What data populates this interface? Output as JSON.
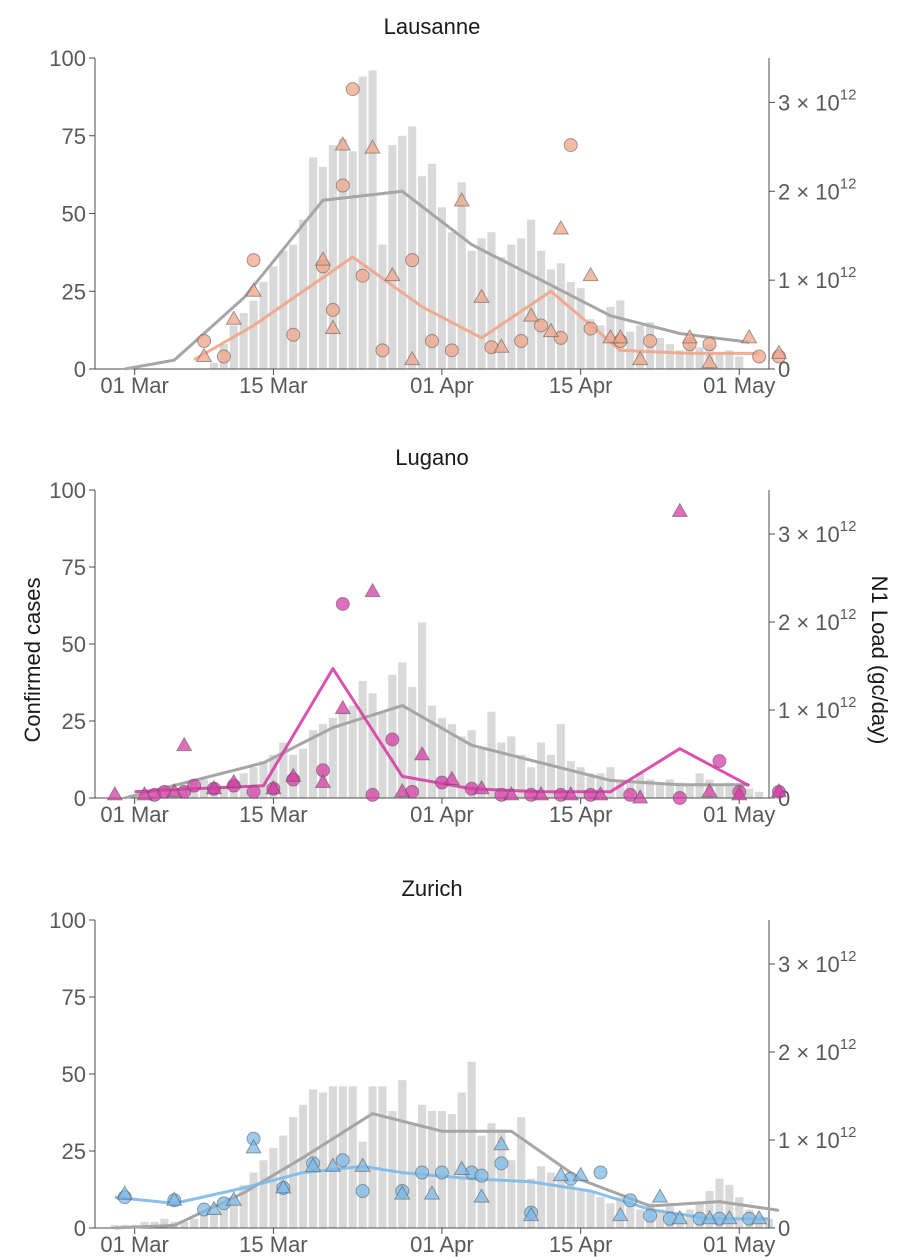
{
  "chart_data": [
    {
      "type": "bar",
      "title": "Lausanne",
      "ylabel": "Confirmed cases",
      "y2label": "N1 Load (gc/day)",
      "ylim": [
        0,
        100
      ],
      "y2lim": [
        0,
        3500000000000.0
      ],
      "yticks": [
        "0",
        "25",
        "50",
        "75",
        "100"
      ],
      "y2ticks": [
        {
          "v": 0,
          "label": "0"
        },
        {
          "v": 1000000000000.0,
          "label": "1 × 10",
          "exp": "12"
        },
        {
          "v": 2000000000000.0,
          "label": "2 × 10",
          "exp": "12"
        },
        {
          "v": 3000000000000.0,
          "label": "3 × 10",
          "exp": "12"
        }
      ],
      "xticks": [
        {
          "d": 0,
          "label": "01 Mar"
        },
        {
          "d": 14,
          "label": "15 Mar"
        },
        {
          "d": 31,
          "label": "01 Apr"
        },
        {
          "d": 45,
          "label": "15 Apr"
        },
        {
          "d": 61,
          "label": "01 May"
        }
      ],
      "xrange": [
        "2020-02-26",
        "2020-05-04"
      ],
      "bar_color": "#d9d9d9",
      "accent": "#f0a58a",
      "bars": {
        "start": "2020-03-09",
        "values": [
          2,
          8,
          14,
          18,
          22,
          28,
          33,
          38,
          40,
          48,
          68,
          65,
          72,
          74,
          70,
          94,
          96,
          40,
          72,
          75,
          78,
          62,
          66,
          52,
          44,
          60,
          38,
          42,
          44,
          36,
          40,
          42,
          48,
          38,
          32,
          34,
          28,
          26,
          16,
          14,
          20,
          22,
          12,
          14,
          15,
          10,
          8,
          6,
          10,
          7,
          8,
          5,
          6,
          4
        ]
      },
      "gray_line": {
        "x": [
          "2020-02-29",
          "2020-03-05",
          "2020-03-12",
          "2020-03-20",
          "2020-03-28",
          "2020-04-04",
          "2020-04-11",
          "2020-04-18",
          "2020-04-25",
          "2020-05-02"
        ],
        "y": [
          0.0,
          100000000000.0,
          800000000000.0,
          1900000000000.0,
          2000000000000.0,
          1400000000000.0,
          1000000000000.0,
          600000000000.0,
          400000000000.0,
          300000000000.0
        ]
      },
      "color_line": {
        "x": [
          "2020-03-07",
          "2020-03-13",
          "2020-03-23",
          "2020-03-30",
          "2020-04-05",
          "2020-04-12",
          "2020-04-19",
          "2020-04-26",
          "2020-05-03"
        ],
        "y": [
          3,
          14,
          36,
          20,
          10,
          25,
          6,
          5,
          5
        ]
      },
      "circles": {
        "x": [
          "2020-03-08",
          "2020-03-10",
          "2020-03-13",
          "2020-03-17",
          "2020-03-20",
          "2020-03-21",
          "2020-03-22",
          "2020-03-23",
          "2020-03-24",
          "2020-03-26",
          "2020-03-29",
          "2020-03-31",
          "2020-04-02",
          "2020-04-06",
          "2020-04-09",
          "2020-04-11",
          "2020-04-13",
          "2020-04-14",
          "2020-04-16",
          "2020-04-19",
          "2020-04-22",
          "2020-04-26",
          "2020-04-28",
          "2020-05-03",
          "2020-05-05"
        ],
        "y": [
          9,
          4,
          35,
          11,
          33,
          19,
          59,
          90,
          30,
          6,
          35,
          9,
          6,
          7,
          9,
          14,
          10,
          72,
          13,
          9,
          9,
          8,
          8,
          4,
          4
        ]
      },
      "triangles": {
        "x": [
          "2020-03-08",
          "2020-03-11",
          "2020-03-13",
          "2020-03-20",
          "2020-03-21",
          "2020-03-22",
          "2020-03-25",
          "2020-03-27",
          "2020-03-29",
          "2020-04-03",
          "2020-04-05",
          "2020-04-07",
          "2020-04-10",
          "2020-04-12",
          "2020-04-13",
          "2020-04-16",
          "2020-04-18",
          "2020-04-19",
          "2020-04-21",
          "2020-04-26",
          "2020-04-28",
          "2020-05-02",
          "2020-05-05"
        ],
        "y": [
          4,
          16,
          25,
          35,
          13,
          72,
          71,
          30,
          3,
          54,
          23,
          7,
          17,
          12,
          45,
          30,
          10,
          10,
          3,
          10,
          2,
          10,
          5
        ]
      }
    },
    {
      "type": "bar",
      "title": "Lugano",
      "ylabel": "Confirmed cases",
      "y2label": "N1 Load (gc/day)",
      "ylim": [
        0,
        100
      ],
      "y2lim": [
        0,
        3500000000000.0
      ],
      "yticks": [
        "0",
        "25",
        "50",
        "75",
        "100"
      ],
      "y2ticks": [
        {
          "v": 0,
          "label": "0"
        },
        {
          "v": 1000000000000.0,
          "label": "1 × 10",
          "exp": "12"
        },
        {
          "v": 2000000000000.0,
          "label": "2 × 10",
          "exp": "12"
        },
        {
          "v": 3000000000000.0,
          "label": "3 × 10",
          "exp": "12"
        }
      ],
      "xticks": [
        {
          "d": 0,
          "label": "01 Mar"
        },
        {
          "d": 14,
          "label": "15 Mar"
        },
        {
          "d": 31,
          "label": "01 Apr"
        },
        {
          "d": 45,
          "label": "15 Apr"
        },
        {
          "d": 61,
          "label": "01 May"
        }
      ],
      "xrange": [
        "2020-02-26",
        "2020-05-04"
      ],
      "bar_color": "#d9d9d9",
      "accent": "#d63ea6",
      "bars": {
        "start": "2020-03-01",
        "values": [
          1,
          1,
          2,
          2,
          3,
          4,
          5,
          6,
          5,
          4,
          6,
          8,
          10,
          12,
          14,
          18,
          14,
          16,
          22,
          24,
          26,
          28,
          30,
          38,
          34,
          28,
          40,
          44,
          36,
          57,
          30,
          26,
          24,
          20,
          22,
          16,
          28,
          18,
          20,
          14,
          10,
          18,
          14,
          24,
          12,
          10,
          8,
          8,
          10,
          6,
          5,
          8,
          6,
          5,
          6,
          5,
          4,
          8,
          6,
          4,
          5,
          4,
          3,
          2
        ]
      },
      "gray_line": {
        "x": [
          "2020-02-29",
          "2020-03-07",
          "2020-03-14",
          "2020-03-21",
          "2020-03-28",
          "2020-04-04",
          "2020-04-11",
          "2020-04-18",
          "2020-04-25",
          "2020-05-02"
        ],
        "y": [
          0.0,
          200000000000.0,
          400000000000.0,
          800000000000.0,
          1050000000000.0,
          600000000000.0,
          400000000000.0,
          200000000000.0,
          150000000000.0,
          150000000000.0
        ]
      },
      "color_line": {
        "x": [
          "2020-03-01",
          "2020-03-07",
          "2020-03-14",
          "2020-03-21",
          "2020-03-28",
          "2020-04-04",
          "2020-04-11",
          "2020-04-18",
          "2020-04-25",
          "2020-05-02"
        ],
        "y": [
          2,
          3,
          4,
          42,
          7,
          3,
          2,
          2,
          16,
          4
        ]
      },
      "circles": {
        "x": [
          "2020-03-03",
          "2020-03-04",
          "2020-03-06",
          "2020-03-07",
          "2020-03-09",
          "2020-03-11",
          "2020-03-13",
          "2020-03-15",
          "2020-03-17",
          "2020-03-20",
          "2020-03-22",
          "2020-03-25",
          "2020-03-27",
          "2020-03-29",
          "2020-04-01",
          "2020-04-04",
          "2020-04-07",
          "2020-04-10",
          "2020-04-13",
          "2020-04-16",
          "2020-04-20",
          "2020-04-25",
          "2020-04-29",
          "2020-05-01",
          "2020-05-05"
        ],
        "y": [
          1,
          2,
          2,
          4,
          3,
          4,
          2,
          3,
          6,
          9,
          63,
          1,
          19,
          2,
          5,
          3,
          1,
          1,
          1,
          1,
          1,
          0,
          12,
          2,
          2
        ]
      },
      "triangles": {
        "x": [
          "2020-02-28",
          "2020-03-02",
          "2020-03-05",
          "2020-03-06",
          "2020-03-09",
          "2020-03-11",
          "2020-03-15",
          "2020-03-17",
          "2020-03-20",
          "2020-03-22",
          "2020-03-25",
          "2020-03-28",
          "2020-03-30",
          "2020-04-02",
          "2020-04-05",
          "2020-04-08",
          "2020-04-11",
          "2020-04-14",
          "2020-04-17",
          "2020-04-21",
          "2020-04-25",
          "2020-04-28",
          "2020-05-01",
          "2020-05-05"
        ],
        "y": [
          1,
          1,
          2,
          17,
          3,
          5,
          3,
          7,
          5,
          29,
          67,
          2,
          14,
          6,
          3,
          1,
          1,
          1,
          1,
          0,
          93,
          2,
          1,
          2
        ]
      }
    },
    {
      "type": "bar",
      "title": "Zurich",
      "ylabel": "Confirmed cases",
      "y2label": "N1 Load (gc/day)",
      "ylim": [
        0,
        100
      ],
      "y2lim": [
        0,
        3500000000000.0
      ],
      "yticks": [
        "0",
        "25",
        "50",
        "75",
        "100"
      ],
      "y2ticks": [
        {
          "v": 0,
          "label": "0"
        },
        {
          "v": 1000000000000.0,
          "label": "1 × 10",
          "exp": "12"
        },
        {
          "v": 2000000000000.0,
          "label": "2 × 10",
          "exp": "12"
        },
        {
          "v": 3000000000000.0,
          "label": "3 × 10",
          "exp": "12"
        }
      ],
      "xticks": [
        {
          "d": 0,
          "label": "01 Mar"
        },
        {
          "d": 14,
          "label": "15 Mar"
        },
        {
          "d": 31,
          "label": "01 Apr"
        },
        {
          "d": 45,
          "label": "15 Apr"
        },
        {
          "d": 61,
          "label": "01 May"
        }
      ],
      "xrange": [
        "2020-02-26",
        "2020-05-04"
      ],
      "bar_color": "#d9d9d9",
      "accent": "#7cb9e8",
      "bars": {
        "start": "2020-02-28",
        "values": [
          1,
          1,
          1,
          2,
          2,
          3,
          2,
          2,
          3,
          4,
          5,
          8,
          10,
          14,
          18,
          22,
          26,
          30,
          36,
          40,
          45,
          44,
          46,
          46,
          46,
          28,
          46,
          46,
          38,
          48,
          34,
          40,
          38,
          38,
          37,
          44,
          54,
          30,
          34,
          32,
          22,
          36,
          16,
          20,
          18,
          16,
          14,
          12,
          12,
          10,
          8,
          10,
          8,
          6,
          8,
          6,
          7,
          5,
          6,
          8,
          12,
          16,
          14,
          10,
          6,
          4,
          3
        ]
      },
      "gray_line": {
        "x": [
          "2020-02-28",
          "2020-03-05",
          "2020-03-12",
          "2020-03-18",
          "2020-03-25",
          "2020-04-01",
          "2020-04-08",
          "2020-04-15",
          "2020-04-22",
          "2020-04-29",
          "2020-05-05"
        ],
        "y": [
          0.0,
          30000000000.0,
          400000000000.0,
          800000000000.0,
          1300000000000.0,
          1100000000000.0,
          1100000000000.0,
          550000000000.0,
          250000000000.0,
          300000000000.0,
          200000000000.0
        ]
      },
      "color_line": {
        "x": [
          "2020-02-28",
          "2020-03-05",
          "2020-03-12",
          "2020-03-18",
          "2020-03-24",
          "2020-03-28",
          "2020-04-04",
          "2020-04-10",
          "2020-04-16",
          "2020-04-22",
          "2020-04-28",
          "2020-05-04"
        ],
        "y": [
          10,
          8,
          13,
          18,
          20,
          18,
          16,
          15,
          12,
          6,
          3,
          3
        ]
      },
      "circles": {
        "x": [
          "2020-02-29",
          "2020-03-05",
          "2020-03-08",
          "2020-03-10",
          "2020-03-13",
          "2020-03-16",
          "2020-03-19",
          "2020-03-22",
          "2020-03-24",
          "2020-03-28",
          "2020-03-30",
          "2020-04-01",
          "2020-04-04",
          "2020-04-05",
          "2020-04-07",
          "2020-04-10",
          "2020-04-14",
          "2020-04-17",
          "2020-04-20",
          "2020-04-22",
          "2020-04-24",
          "2020-04-27",
          "2020-04-29",
          "2020-05-02"
        ],
        "y": [
          10,
          9,
          6,
          8,
          29,
          13,
          21,
          22,
          12,
          12,
          18,
          18,
          18,
          17,
          21,
          5,
          16,
          18,
          9,
          4,
          3,
          3,
          3,
          3
        ]
      },
      "triangles": {
        "x": [
          "2020-02-29",
          "2020-03-05",
          "2020-03-09",
          "2020-03-11",
          "2020-03-13",
          "2020-03-16",
          "2020-03-19",
          "2020-03-21",
          "2020-03-24",
          "2020-03-28",
          "2020-03-31",
          "2020-04-03",
          "2020-04-05",
          "2020-04-07",
          "2020-04-10",
          "2020-04-13",
          "2020-04-15",
          "2020-04-19",
          "2020-04-23",
          "2020-04-25",
          "2020-04-28",
          "2020-04-30",
          "2020-05-03"
        ],
        "y": [
          11,
          9,
          6,
          9,
          26,
          13,
          20,
          20,
          20,
          11,
          11,
          19,
          10,
          27,
          4,
          17,
          17,
          4,
          10,
          3,
          3,
          3,
          3
        ]
      }
    }
  ]
}
